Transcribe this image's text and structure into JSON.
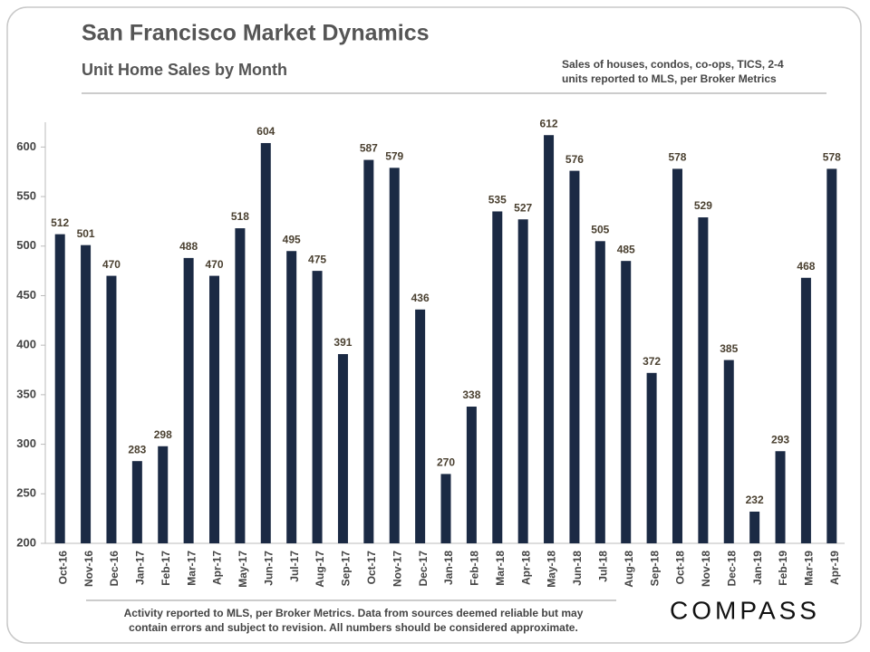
{
  "chart_data": {
    "type": "bar",
    "title": "San Francisco Market Dynamics",
    "subtitle": "Unit Home Sales by Month",
    "note": [
      "Sales of houses,  condos,  co-ops,  TICS, 2-4",
      "units reported to MLS, per Broker Metrics"
    ],
    "footnote": [
      "Activity  reported to MLS, per Broker Metrics. Data from sources  deemed reliable but may",
      "contain errors and subject to revision. All numbers should  be considered approximate."
    ],
    "logo": "COMPASS",
    "categories": [
      "Oct-16",
      "Nov-16",
      "Dec-16",
      "Jan-17",
      "Feb-17",
      "Mar-17",
      "Apr-17",
      "May-17",
      "Jun-17",
      "Jul-17",
      "Aug-17",
      "Sep-17",
      "Oct-17",
      "Nov-17",
      "Dec-17",
      "Jan-18",
      "Feb-18",
      "Mar-18",
      "Apr-18",
      "May-18",
      "Jun-18",
      "Jul-18",
      "Aug-18",
      "Sep-18",
      "Oct-18",
      "Nov-18",
      "Dec-18",
      "Jan-19",
      "Feb-19",
      "Mar-19",
      "Apr-19"
    ],
    "values": [
      512,
      501,
      470,
      283,
      298,
      488,
      470,
      518,
      604,
      495,
      475,
      391,
      587,
      579,
      436,
      270,
      338,
      535,
      527,
      612,
      576,
      505,
      485,
      372,
      578,
      529,
      385,
      232,
      293,
      468,
      578
    ],
    "color": "#1b2a44",
    "ylim": [
      200,
      625
    ],
    "yticks": [
      200,
      250,
      300,
      350,
      400,
      450,
      500,
      550,
      600
    ],
    "grid": false
  }
}
